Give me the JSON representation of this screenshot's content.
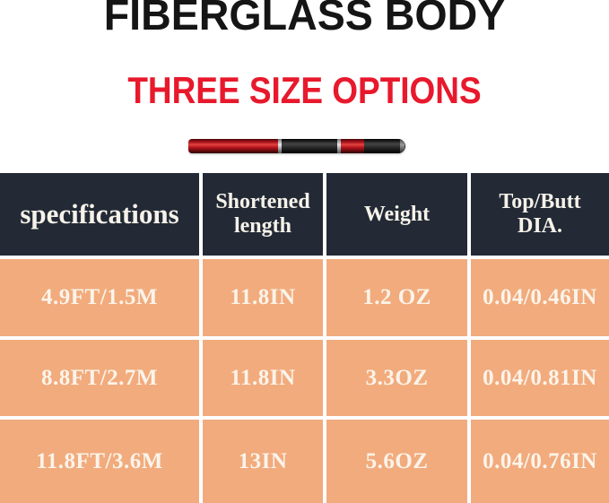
{
  "title": "FIBERGLASS BODY",
  "subtitle": "THREE SIZE OPTIONS",
  "product_image": {
    "name": "telescopic-rod-collapsed"
  },
  "chart_data": {
    "type": "table",
    "title": "FIBERGLASS BODY",
    "subtitle": "THREE SIZE OPTIONS",
    "columns": [
      "specifications",
      "Shortened length",
      "Weight",
      "Top/Butt DIA."
    ],
    "rows": [
      [
        "4.9FT/1.5M",
        "11.8IN",
        "1.2 OZ",
        "0.04/0.46IN"
      ],
      [
        "8.8FT/2.7M",
        "11.8IN",
        "3.3OZ",
        "0.04/0.81IN"
      ],
      [
        "11.8FT/3.6M",
        "13IN",
        "5.6OZ",
        "0.04/0.76IN"
      ]
    ]
  },
  "colors": {
    "title_text": "#151515",
    "subtitle_text": "#e8192c",
    "header_bg": "#232a36",
    "header_text": "#f6f2e9",
    "row_bg": "#f2ab7d",
    "row_text": "#faf4ea",
    "divider": "#ffffff",
    "rod_red": "#c01a22",
    "rod_black": "#151515"
  }
}
